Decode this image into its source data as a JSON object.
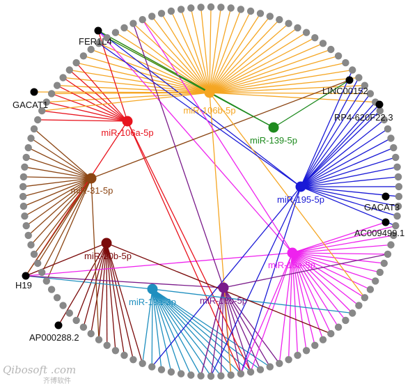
{
  "network": {
    "lnc_nodes": [
      {
        "id": "FER1L4",
        "label": "FER1L4"
      },
      {
        "id": "GACAT1",
        "label": "GACAT1"
      },
      {
        "id": "LINC00152",
        "label": "LINC00152"
      },
      {
        "id": "RP4-620F22.3",
        "label": "RP4-620F22.3"
      },
      {
        "id": "GACAT3",
        "label": "GACAT3"
      },
      {
        "id": "AC009499.1",
        "label": "AC009499.1"
      },
      {
        "id": "H19",
        "label": "H19"
      },
      {
        "id": "AP000288.2",
        "label": "AP000288.2"
      }
    ],
    "mirna_nodes": [
      {
        "id": "mir106b",
        "label": "miR-106b-5p",
        "color": "#f5a623"
      },
      {
        "id": "mir106a",
        "label": "miR-106a-5p",
        "color": "#e8141e"
      },
      {
        "id": "mir139",
        "label": "miR-139-5p",
        "color": "#1e8a1e"
      },
      {
        "id": "mir31",
        "label": "miR-31-5p",
        "color": "#8b4513"
      },
      {
        "id": "mir195",
        "label": "miR-195-5p",
        "color": "#1a1ad6"
      },
      {
        "id": "mir20b",
        "label": "miR-20b-5p",
        "color": "#7a0a0a"
      },
      {
        "id": "mir18a",
        "label": "miR-18a-5p",
        "color": "#ee22ee"
      },
      {
        "id": "mir19a",
        "label": "miR-19a-3p",
        "color": "#1f8fbf"
      },
      {
        "id": "mir18b",
        "label": "miR-18b-5p",
        "color": "#7a1a8a"
      }
    ],
    "ring_node_count": 118,
    "ring_node_color": "#888888",
    "lnc_node_color": "#000000"
  },
  "watermark": {
    "brand": "Qibosoft .com",
    "chinese": "齐博软件"
  }
}
